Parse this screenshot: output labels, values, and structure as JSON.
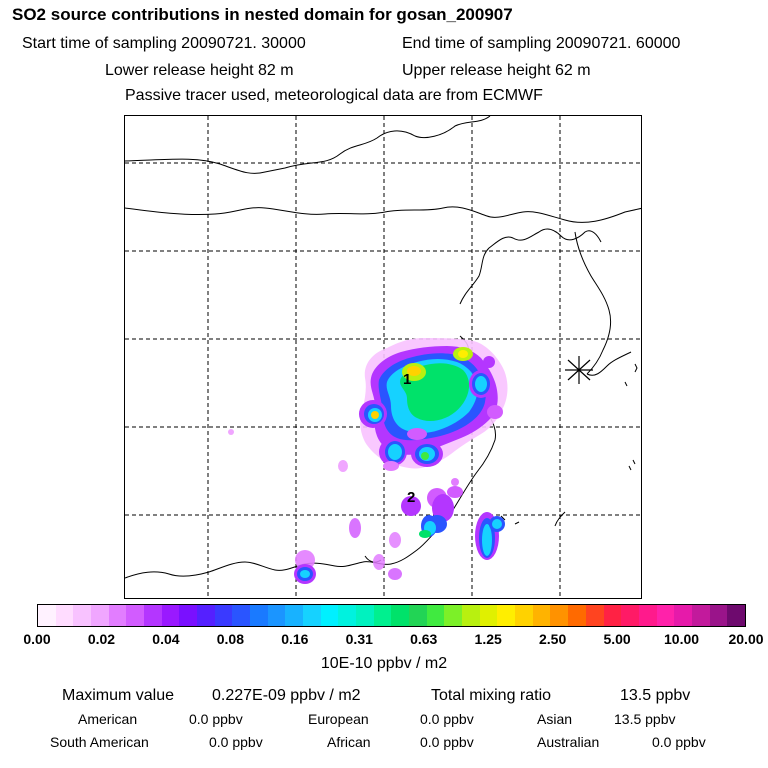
{
  "title": "SO2 source contributions in nested domain for gosan_200907",
  "header": {
    "start_time": "Start time of sampling 20090721. 30000",
    "end_time": "End time of sampling 20090721. 60000",
    "lower_height": "Lower release height   82 m",
    "upper_height": "Upper release height   62 m",
    "tracer_note": "Passive tracer used, meteorological data are from ECMWF"
  },
  "map": {
    "station_marker": "receptor-star",
    "labels": [
      "1",
      "2"
    ]
  },
  "colorbar": {
    "colors": [
      "#fff2ff",
      "#ffdcff",
      "#f8c2ff",
      "#f0a6ff",
      "#e27dff",
      "#d25cff",
      "#b436ff",
      "#9a19ff",
      "#7a10ff",
      "#5520ff",
      "#3a3aff",
      "#2a55ff",
      "#1a7aff",
      "#1b95ff",
      "#18b2ff",
      "#16d2ff",
      "#00f0ff",
      "#00f2df",
      "#00f2bf",
      "#00f08f",
      "#00e26a",
      "#22d455",
      "#40ea40",
      "#7cf028",
      "#b8f010",
      "#e0f000",
      "#ffee00",
      "#ffd200",
      "#ffb300",
      "#ff9200",
      "#ff6a00",
      "#ff4420",
      "#ff2244",
      "#ff1a66",
      "#ff1a8c",
      "#ff22aa",
      "#e61aaa",
      "#c21a9c",
      "#9a148a",
      "#6e0a6e"
    ],
    "ticks": [
      "0.00",
      "0.02",
      "0.04",
      "0.08",
      "0.16",
      "0.31",
      "0.63",
      "1.25",
      "2.50",
      "5.00",
      "10.00",
      "20.00"
    ],
    "unit": "10E-10 ppbv / m2"
  },
  "stats": {
    "max_label": "Maximum value",
    "max_value": "0.227E-09 ppbv / m2",
    "total_label": "Total mixing ratio",
    "total_value": "13.5 ppbv"
  },
  "sources": [
    {
      "name": "American",
      "value": "0.0 ppbv"
    },
    {
      "name": "European",
      "value": "0.0 ppbv"
    },
    {
      "name": "Asian",
      "value": "13.5 ppbv"
    },
    {
      "name": "South American",
      "value": "0.0 ppbv"
    },
    {
      "name": "African",
      "value": "0.0 ppbv"
    },
    {
      "name": "Australian",
      "value": "0.0 ppbv"
    }
  ]
}
